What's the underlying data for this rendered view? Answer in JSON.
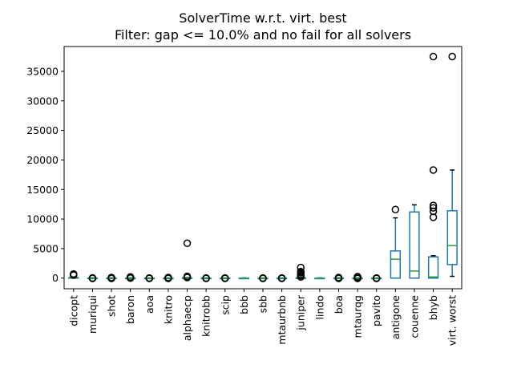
{
  "chart_data": {
    "type": "box",
    "title": "SolverTime w.r.t. virt. best",
    "subtitle": "Filter: gap <= 10.0% and no fail for all solvers",
    "xlabel": "",
    "ylabel": "",
    "ylim": [
      -1800,
      39200
    ],
    "yticks": [
      0,
      5000,
      10000,
      15000,
      20000,
      25000,
      30000,
      35000
    ],
    "grid": false,
    "colors": {
      "box": "#1f77b4",
      "median": "#2ca02c",
      "whisker": "#1f77b4",
      "cap": "#000000",
      "flier": "#000000"
    },
    "categories": [
      "dicopt",
      "muriqui",
      "shot",
      "baron",
      "aoa",
      "knitro",
      "alphaecp",
      "knitrobb",
      "scip",
      "bbb",
      "sbb",
      "mtaurbnb",
      "juniper",
      "lindo",
      "boa",
      "mtaurqg",
      "pavito",
      "antigone",
      "couenne",
      "bhyb",
      "virt. worst"
    ],
    "boxes": [
      {
        "label": "dicopt",
        "min": 0,
        "q1": 0,
        "median": 0,
        "q3": 100,
        "max": 200,
        "fliers": [
          500,
          600,
          700
        ]
      },
      {
        "label": "muriqui",
        "min": 0,
        "q1": 0,
        "median": 0,
        "q3": 20,
        "max": 50,
        "fliers": [
          -50,
          30
        ]
      },
      {
        "label": "shot",
        "min": 0,
        "q1": 0,
        "median": 0,
        "q3": 20,
        "max": 50,
        "fliers": [
          -50,
          50,
          100
        ]
      },
      {
        "label": "baron",
        "min": 0,
        "q1": 0,
        "median": 0,
        "q3": 20,
        "max": 50,
        "fliers": [
          0,
          100,
          200
        ]
      },
      {
        "label": "aoa",
        "min": 0,
        "q1": 0,
        "median": 0,
        "q3": 10,
        "max": 30,
        "fliers": [
          -50,
          20
        ]
      },
      {
        "label": "knitro",
        "min": 0,
        "q1": 0,
        "median": 0,
        "q3": 10,
        "max": 30,
        "fliers": [
          -50,
          50,
          100
        ]
      },
      {
        "label": "alphaecp",
        "min": 0,
        "q1": 0,
        "median": 0,
        "q3": 50,
        "max": 100,
        "fliers": [
          100,
          200,
          300,
          5900
        ]
      },
      {
        "label": "knitrobb",
        "min": 0,
        "q1": 0,
        "median": 0,
        "q3": 10,
        "max": 30,
        "fliers": [
          -50,
          20
        ]
      },
      {
        "label": "scip",
        "min": 0,
        "q1": 0,
        "median": 0,
        "q3": 10,
        "max": 30,
        "fliers": [
          -50,
          20
        ]
      },
      {
        "label": "bbb",
        "min": 0,
        "q1": 0,
        "median": 0,
        "q3": 10,
        "max": 30,
        "fliers": []
      },
      {
        "label": "sbb",
        "min": 0,
        "q1": 0,
        "median": 0,
        "q3": 10,
        "max": 30,
        "fliers": [
          -50,
          20
        ]
      },
      {
        "label": "mtaurbnb",
        "min": 0,
        "q1": 0,
        "median": 0,
        "q3": 10,
        "max": 30,
        "fliers": [
          -50,
          20
        ]
      },
      {
        "label": "juniper",
        "min": 0,
        "q1": 0,
        "median": 0,
        "q3": 50,
        "max": 100,
        "fliers": [
          200,
          400,
          600,
          900,
          1100,
          1800
        ]
      },
      {
        "label": "lindo",
        "min": 0,
        "q1": 0,
        "median": 0,
        "q3": 10,
        "max": 30,
        "fliers": []
      },
      {
        "label": "boa",
        "min": 0,
        "q1": 0,
        "median": 0,
        "q3": 20,
        "max": 50,
        "fliers": [
          -50,
          100
        ]
      },
      {
        "label": "mtaurqg",
        "min": 0,
        "q1": 0,
        "median": 0,
        "q3": 20,
        "max": 50,
        "fliers": [
          -50,
          50,
          150,
          250
        ]
      },
      {
        "label": "pavito",
        "min": 0,
        "q1": 0,
        "median": 0,
        "q3": 10,
        "max": 30,
        "fliers": [
          -50,
          20
        ]
      },
      {
        "label": "antigone",
        "min": 0,
        "q1": 0,
        "median": 3200,
        "q3": 4600,
        "max": 10200,
        "fliers": [
          11600
        ]
      },
      {
        "label": "couenne",
        "min": 0,
        "q1": 0,
        "median": 1200,
        "q3": 11200,
        "max": 12400,
        "fliers": []
      },
      {
        "label": "bhyb",
        "min": 0,
        "q1": 0,
        "median": 200,
        "q3": 3600,
        "max": 3800,
        "fliers": [
          10300,
          11300,
          11900,
          12300,
          18300,
          37500
        ]
      },
      {
        "label": "virt. worst",
        "min": 300,
        "q1": 2300,
        "median": 5500,
        "q3": 11400,
        "max": 18300,
        "fliers": [
          37500
        ]
      }
    ]
  }
}
